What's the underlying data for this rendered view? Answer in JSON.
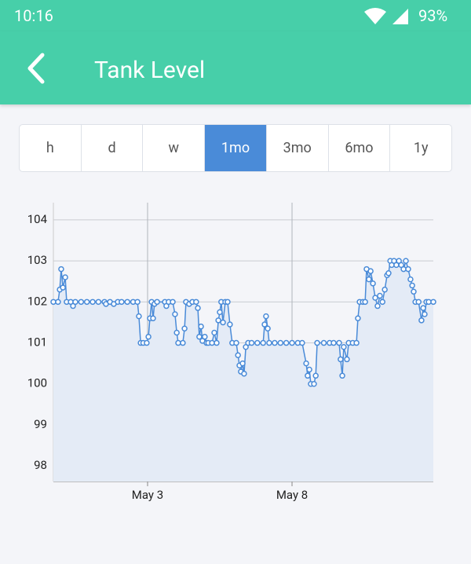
{
  "status_bar": {
    "time": "10:16",
    "battery": "93%"
  },
  "header": {
    "title": "Tank Level"
  },
  "tabs": {
    "items": [
      "h",
      "d",
      "w",
      "1mo",
      "3mo",
      "6mo",
      "1y"
    ],
    "active": 3
  },
  "chart_data": {
    "type": "line",
    "x": [
      -0.26,
      -0.1,
      -0.04,
      0.01,
      0.07,
      0.15,
      0.2,
      0.34,
      0.42,
      0.5,
      0.7,
      0.9,
      1.1,
      1.3,
      1.51,
      1.56,
      1.7,
      1.83,
      1.97,
      2.1,
      2.3,
      2.5,
      2.65,
      2.7,
      2.76,
      2.85,
      2.97,
      3.03,
      3.08,
      3.14,
      3.19,
      3.24,
      3.33,
      3.6,
      3.65,
      3.73,
      3.87,
      3.95,
      4.01,
      4.06,
      4.22,
      4.28,
      4.33,
      4.44,
      4.55,
      4.68,
      4.74,
      4.79,
      4.85,
      4.9,
      4.98,
      5.04,
      5.1,
      5.23,
      5.31,
      5.39,
      5.45,
      5.5,
      5.55,
      5.61,
      5.69,
      5.77,
      5.85,
      5.93,
      6.07,
      6.13,
      6.18,
      6.23,
      6.29,
      6.34,
      6.4,
      6.48,
      6.6,
      6.8,
      7.0,
      7.05,
      7.1,
      7.16,
      7.21,
      7.4,
      7.6,
      7.8,
      8.0,
      8.2,
      8.35,
      8.49,
      8.54,
      8.6,
      8.65,
      8.76,
      8.82,
      8.87,
      9.1,
      9.3,
      9.44,
      9.63,
      9.68,
      9.74,
      9.79,
      9.9,
      9.96,
      10.1,
      10.23,
      10.28,
      10.34,
      10.45,
      10.53,
      10.58,
      10.66,
      10.72,
      10.8,
      10.88,
      10.96,
      11.04,
      11.13,
      11.21,
      11.29,
      11.34,
      11.4,
      11.45,
      11.53,
      11.61,
      11.7,
      11.78,
      11.86,
      11.94,
      12.02,
      12.1,
      12.16,
      12.21,
      12.27,
      12.38,
      12.48,
      12.54,
      12.59,
      12.65,
      12.73,
      12.89
    ],
    "values": [
      102,
      102,
      102.3,
      102.8,
      102.35,
      102.6,
      102,
      102,
      101.9,
      102,
      102,
      102,
      102,
      102,
      102,
      101.95,
      102,
      101.95,
      102,
      102,
      102,
      102,
      102,
      101.65,
      101,
      101,
      101,
      101.15,
      101.6,
      102,
      101.6,
      101.95,
      102,
      102,
      101.9,
      102,
      102,
      101.7,
      101.25,
      101,
      101,
      101.35,
      102,
      101.95,
      102,
      102,
      101.85,
      101.15,
      101.4,
      101.05,
      101.15,
      101,
      101,
      101,
      101.25,
      101,
      101.55,
      101.75,
      102,
      101.5,
      102,
      102,
      101.45,
      101,
      101,
      100.7,
      100.45,
      100.3,
      100.5,
      100.25,
      100.9,
      101,
      101,
      101,
      101,
      101.45,
      101.65,
      101.35,
      101,
      101,
      101,
      101,
      101,
      101,
      101,
      100.5,
      100.2,
      100.35,
      100,
      100,
      100.2,
      101,
      101,
      101,
      101,
      101,
      100.6,
      100.2,
      100.9,
      100.6,
      101,
      101,
      101,
      101.6,
      102,
      102,
      102,
      102.8,
      102.55,
      102.75,
      102.45,
      102.1,
      101.9,
      102.15,
      102,
      102.3,
      102.65,
      102.7,
      103,
      102.9,
      103,
      102.9,
      103,
      102.9,
      102.8,
      103,
      102.8,
      102.55,
      102.4,
      102.25,
      102,
      102,
      101.55,
      101.85,
      101.7,
      102,
      102,
      102
    ],
    "color": "#4a8bd8",
    "fill_color": "#e4ebf6",
    "xlim": [
      -0.26,
      12.89
    ],
    "xticks": [
      {
        "value": 3,
        "label": "May 3"
      },
      {
        "value": 8,
        "label": "May 8"
      }
    ],
    "ylim": [
      97.62,
      104.42
    ],
    "yticks": [
      98,
      99,
      100,
      101,
      102,
      103,
      104
    ],
    "grid": true
  }
}
